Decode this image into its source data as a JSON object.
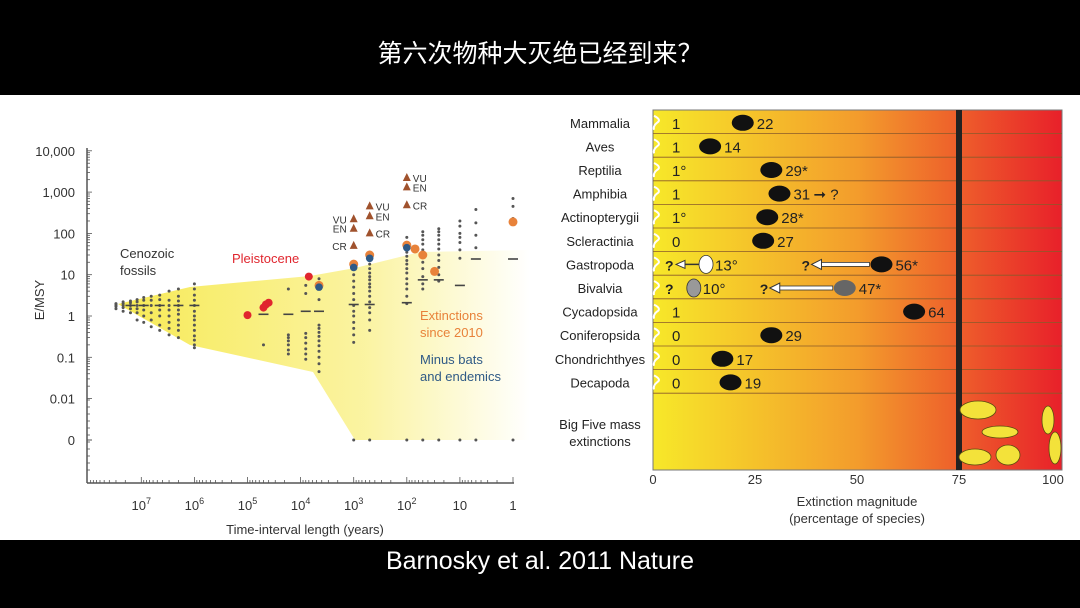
{
  "slide": {
    "title": "第六次物种大灭绝已经到来？",
    "citation": "Barnosky  et al. 2011 Nature"
  },
  "colors": {
    "dots": "#555555",
    "pleistocene": "#e0262e",
    "extinctions_since_2010": "#e8823a",
    "minus_bats": "#2f5a86",
    "iucn_triangle": "#a0522d",
    "shade": "#f7ea55",
    "bar_start": "#f7e829",
    "bar_mid": "#f39c2c",
    "bar_end": "#e8202a"
  },
  "chart_data": [
    {
      "type": "scatter",
      "title": "",
      "xlabel": "Time-interval length (years)",
      "ylabel": "E/MSY",
      "x_scale": "log-reversed",
      "y_scale": "log (with 0 baseline)",
      "x_ticks": [
        {
          "base": "10",
          "exp": "7",
          "v": 10000000
        },
        {
          "base": "10",
          "exp": "6",
          "v": 1000000
        },
        {
          "base": "10",
          "exp": "5",
          "v": 100000
        },
        {
          "base": "10",
          "exp": "4",
          "v": 10000
        },
        {
          "base": "10",
          "exp": "3",
          "v": 1000
        },
        {
          "base": "10",
          "exp": "2",
          "v": 100
        },
        {
          "base": "10",
          "exp": "",
          "v": 10
        },
        {
          "base": "1",
          "exp": "",
          "v": 1
        }
      ],
      "y_ticks": [
        {
          "label": "10,000",
          "v": 10000
        },
        {
          "label": "1,000",
          "v": 1000
        },
        {
          "label": "100",
          "v": 100
        },
        {
          "label": "10",
          "v": 10
        },
        {
          "label": "1",
          "v": 1
        },
        {
          "label": "0.1",
          "v": 0.1
        },
        {
          "label": "0.01",
          "v": 0.01
        },
        {
          "label": "0",
          "v": 0
        }
      ],
      "annotations": {
        "cenozoic": [
          "Cenozoic",
          "fossils"
        ],
        "pleistocene": "Pleistocene",
        "extinctions": [
          "Extinctions",
          "since 2010"
        ],
        "minus": [
          "Minus bats",
          "and endemics"
        ]
      },
      "dot_columns": [
        {
          "x": 30000000,
          "y": [
            1.5,
            1.7,
            1.8,
            1.9,
            2.0
          ]
        },
        {
          "x": 22000000,
          "y": [
            1.3,
            1.6,
            1.8,
            2.0,
            2.2
          ]
        },
        {
          "x": 16000000,
          "y": [
            1.2,
            1.5,
            1.8,
            2.1,
            2.3
          ]
        },
        {
          "x": 12000000,
          "y": [
            0.8,
            1.2,
            1.5,
            1.8,
            2.2,
            2.5
          ]
        },
        {
          "x": 9000000,
          "y": [
            0.7,
            1.0,
            1.4,
            1.8,
            2.4,
            2.8
          ]
        },
        {
          "x": 6500000,
          "y": [
            0.55,
            0.8,
            1.2,
            1.8,
            2.4,
            3.0
          ]
        },
        {
          "x": 4500000,
          "y": [
            0.45,
            0.6,
            1.0,
            1.4,
            1.8,
            2.5,
            3.2
          ]
        },
        {
          "x": 3000000,
          "y": [
            0.35,
            0.5,
            0.7,
            1.0,
            1.4,
            1.8,
            2.4,
            4.0
          ]
        },
        {
          "x": 2000000,
          "y": [
            0.3,
            0.45,
            0.6,
            0.8,
            1.1,
            1.4,
            1.8,
            2.3,
            3.0,
            4.5
          ]
        },
        {
          "x": 1000000,
          "y": [
            0.17,
            0.2,
            0.26,
            0.33,
            0.45,
            0.6,
            0.8,
            1.0,
            1.3,
            1.8,
            2.4,
            3.2,
            4.5,
            6.0
          ]
        },
        {
          "x": 50000,
          "y": [
            0.2
          ]
        },
        {
          "x": 17000,
          "y": [
            0.12,
            0.15,
            0.2,
            0.25,
            0.3,
            0.35,
            4.5
          ]
        },
        {
          "x": 8000,
          "y": [
            0.09,
            0.12,
            0.16,
            0.22,
            0.3,
            0.38,
            3.5,
            5.5
          ]
        },
        {
          "x": 4500,
          "y": [
            0.045,
            0.07,
            0.1,
            0.14,
            0.19,
            0.25,
            0.32,
            0.4,
            0.5,
            0.6,
            2.5,
            8.0
          ]
        },
        {
          "x": 1000,
          "y": [
            0,
            0.23,
            0.35,
            0.5,
            0.7,
            1.0,
            1.3,
            1.8,
            2.5,
            3.5,
            5,
            7,
            10,
            14,
            20
          ]
        },
        {
          "x": 500,
          "y": [
            0,
            0.45,
            0.8,
            1.2,
            1.6,
            2.2,
            3,
            4,
            5,
            6,
            7.5,
            9,
            11,
            14,
            18,
            24,
            35
          ]
        },
        {
          "x": 100,
          "y": [
            0,
            2,
            3,
            4.5,
            6,
            8,
            11,
            14,
            18,
            22,
            28,
            35,
            45,
            60,
            80
          ]
        },
        {
          "x": 50,
          "y": [
            0,
            4.5,
            6,
            9,
            14,
            20,
            28,
            40,
            55,
            70,
            90,
            110
          ]
        },
        {
          "x": 25,
          "y": [
            0,
            7,
            10,
            15,
            22,
            30,
            42,
            55,
            70,
            90,
            110,
            130
          ]
        },
        {
          "x": 10,
          "y": [
            0,
            25,
            40,
            60,
            80,
            100,
            150,
            200
          ]
        },
        {
          "x": 5,
          "y": [
            0,
            45,
            90,
            180,
            380
          ]
        },
        {
          "x": 1,
          "y": [
            0,
            230,
            450,
            700
          ]
        }
      ],
      "medians": [
        {
          "x": 16000000,
          "y": 1.8
        },
        {
          "x": 9000000,
          "y": 1.8
        },
        {
          "x": 4500000,
          "y": 1.8
        },
        {
          "x": 2000000,
          "y": 1.8
        },
        {
          "x": 1000000,
          "y": 1.8
        },
        {
          "x": 50000,
          "y": 1.1
        },
        {
          "x": 17000,
          "y": 1.1
        },
        {
          "x": 8000,
          "y": 1.3
        },
        {
          "x": 4500,
          "y": 1.3
        },
        {
          "x": 1000,
          "y": 1.9
        },
        {
          "x": 500,
          "y": 1.9
        },
        {
          "x": 100,
          "y": 2.1
        },
        {
          "x": 50,
          "y": 7.5
        },
        {
          "x": 25,
          "y": 7.5
        },
        {
          "x": 10,
          "y": 5.5
        },
        {
          "x": 5,
          "y": 24
        },
        {
          "x": 1,
          "y": 24
        }
      ],
      "pleistocene": [
        {
          "x": 100000,
          "y": 1.05
        },
        {
          "x": 50000,
          "y": 1.6
        },
        {
          "x": 45000,
          "y": 1.9
        },
        {
          "x": 40000,
          "y": 2.1
        },
        {
          "x": 7000,
          "y": 9
        }
      ],
      "extinctions_since_2010": [
        {
          "x": 4500,
          "y": 5.5
        },
        {
          "x": 1000,
          "y": 18
        },
        {
          "x": 500,
          "y": 30
        },
        {
          "x": 100,
          "y": 52
        },
        {
          "x": 70,
          "y": 42
        },
        {
          "x": 50,
          "y": 30
        },
        {
          "x": 30,
          "y": 12
        },
        {
          "x": 1,
          "y": 190
        }
      ],
      "minus_bats_and_endemics": [
        {
          "x": 4500,
          "y": 5
        },
        {
          "x": 1000,
          "y": 15
        },
        {
          "x": 500,
          "y": 25
        },
        {
          "x": 100,
          "y": 45
        }
      ],
      "iucn_projections": [
        {
          "x": 1000,
          "points": [
            {
              "label": "VU",
              "y": 220
            },
            {
              "label": "EN",
              "y": 130
            },
            {
              "label": "CR",
              "y": 50
            }
          ],
          "label_side": "left"
        },
        {
          "x": 500,
          "points": [
            {
              "label": "VU",
              "y": 450
            },
            {
              "label": "EN",
              "y": 260
            },
            {
              "label": "CR",
              "y": 100
            }
          ],
          "label_side": "right"
        },
        {
          "x": 100,
          "points": [
            {
              "label": "VU",
              "y": 2200
            },
            {
              "label": "EN",
              "y": 1300
            },
            {
              "label": "CR",
              "y": 480
            }
          ],
          "label_side": "right"
        }
      ]
    },
    {
      "type": "bar",
      "xlabel": [
        "Extinction magnitude",
        "(percentage of species)"
      ],
      "x_ticks": [
        "0",
        "25",
        "50",
        "75",
        "100"
      ],
      "xlim": [
        0,
        100
      ],
      "threshold": 75,
      "big_five_label": [
        "Big Five mass",
        "extinctions"
      ],
      "taxa": [
        {
          "name": "Mammalia",
          "low": 1,
          "low_label": "1",
          "high": 22,
          "high_label": "22",
          "icon": "mammoth-icon"
        },
        {
          "name": "Aves",
          "low": 1,
          "low_label": "1",
          "high": 14,
          "high_label": "14",
          "icon": "dodo-icon"
        },
        {
          "name": "Reptilia",
          "low": 1,
          "low_label": "1°",
          "high": 29,
          "high_label": "29*",
          "icon": "lizard-icon"
        },
        {
          "name": "Amphibia",
          "low": 1,
          "low_label": "1",
          "high": 31,
          "high_label": "31",
          "icon": "frog-icon",
          "after": "➞ ?"
        },
        {
          "name": "Actinopterygii",
          "low": 1,
          "low_label": "1°",
          "high": 28,
          "high_label": "28*",
          "icon": "fish-icon"
        },
        {
          "name": "Scleractinia",
          "low": 0,
          "low_label": "0",
          "high": 27,
          "high_label": "27",
          "icon": "coral-icon"
        },
        {
          "name": "Gastropoda",
          "low": 13,
          "low_label": "13°",
          "high": 56,
          "high_label": "56*",
          "icon": "snail-icon",
          "low_q": "?",
          "low_arrow": true,
          "high_q": "?",
          "high_arrow": true
        },
        {
          "name": "Bivalvia",
          "low": 10,
          "low_label": "10°",
          "high": 47,
          "high_label": "47*",
          "icon": "clam-icon",
          "low_q": "?",
          "low_arrow": false,
          "high_q": "?",
          "high_arrow": true
        },
        {
          "name": "Cycadopsida",
          "low": 1,
          "low_label": "1",
          "high": 64,
          "high_label": "64",
          "icon": "cycad-icon"
        },
        {
          "name": "Coniferopsida",
          "low": 0,
          "low_label": "0",
          "high": 29,
          "high_label": "29",
          "icon": "conifer-icon"
        },
        {
          "name": "Chondrichthyes",
          "low": 0,
          "low_label": "0",
          "high": 17,
          "high_label": "17",
          "icon": "shark-icon"
        },
        {
          "name": "Decapoda",
          "low": 0,
          "low_label": "0",
          "high": 19,
          "high_label": "19",
          "icon": "crayfish-icon"
        }
      ]
    }
  ]
}
